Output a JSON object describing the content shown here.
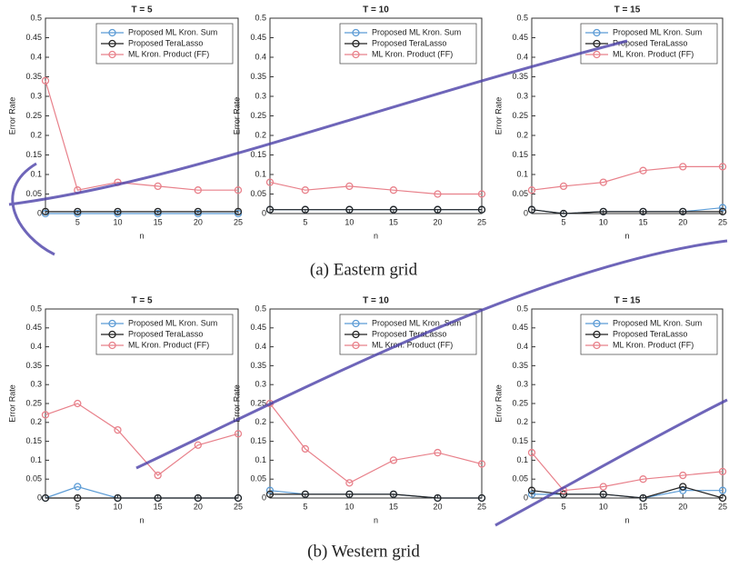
{
  "chart_data": [
    {
      "type": "line",
      "title": "T = 5",
      "xlabel": "n",
      "ylabel": "Error Rate",
      "x": [
        1,
        5,
        10,
        15,
        20,
        25
      ],
      "xlim": [
        1,
        25
      ],
      "xticks": [
        5,
        10,
        15,
        20,
        25
      ],
      "ylim": [
        0,
        0.5
      ],
      "yticks": [
        0,
        0.05,
        0.1,
        0.15,
        0.2,
        0.25,
        0.3,
        0.35,
        0.4,
        0.45,
        0.5
      ],
      "legend": "upper right",
      "series": [
        {
          "name": "Proposed ML Kron. Sum",
          "color": "#5b9bd5",
          "values": [
            0,
            0,
            0,
            0,
            0,
            0
          ]
        },
        {
          "name": "Proposed TeraLasso",
          "color": "#222222",
          "values": [
            0.005,
            0.005,
            0.005,
            0.005,
            0.005,
            0.005
          ]
        },
        {
          "name": "ML Kron. Product (FF)",
          "color": "#e8808a",
          "values": [
            0.34,
            0.06,
            0.08,
            0.07,
            0.06,
            0.06
          ]
        }
      ]
    },
    {
      "type": "line",
      "title": "T = 10",
      "xlabel": "n",
      "ylabel": "Error Rate",
      "x": [
        1,
        5,
        10,
        15,
        20,
        25
      ],
      "xlim": [
        1,
        25
      ],
      "xticks": [
        5,
        10,
        15,
        20,
        25
      ],
      "ylim": [
        0,
        0.5
      ],
      "yticks": [
        0,
        0.05,
        0.1,
        0.15,
        0.2,
        0.25,
        0.3,
        0.35,
        0.4,
        0.45,
        0.5
      ],
      "legend": "upper right",
      "series": [
        {
          "name": "Proposed ML Kron. Sum",
          "color": "#5b9bd5",
          "values": [
            0.01,
            0.01,
            0.01,
            0.01,
            0.01,
            0.01
          ]
        },
        {
          "name": "Proposed TeraLasso",
          "color": "#222222",
          "values": [
            0.01,
            0.01,
            0.01,
            0.01,
            0.01,
            0.01
          ]
        },
        {
          "name": "ML Kron. Product (FF)",
          "color": "#e8808a",
          "values": [
            0.08,
            0.06,
            0.07,
            0.06,
            0.05,
            0.05
          ]
        }
      ]
    },
    {
      "type": "line",
      "title": "T = 15",
      "xlabel": "n",
      "ylabel": "Error Rate",
      "x": [
        1,
        5,
        10,
        15,
        20,
        25
      ],
      "xlim": [
        1,
        25
      ],
      "xticks": [
        5,
        10,
        15,
        20,
        25
      ],
      "ylim": [
        0,
        0.5
      ],
      "yticks": [
        0,
        0.05,
        0.1,
        0.15,
        0.2,
        0.25,
        0.3,
        0.35,
        0.4,
        0.45,
        0.5
      ],
      "legend": "upper right",
      "series": [
        {
          "name": "Proposed ML Kron. Sum",
          "color": "#5b9bd5",
          "values": [
            0.01,
            0,
            0.005,
            0.005,
            0.005,
            0.015
          ]
        },
        {
          "name": "Proposed TeraLasso",
          "color": "#222222",
          "values": [
            0.01,
            0,
            0.005,
            0.005,
            0.005,
            0.005
          ]
        },
        {
          "name": "ML Kron. Product (FF)",
          "color": "#e8808a",
          "values": [
            0.06,
            0.07,
            0.08,
            0.11,
            0.12,
            0.12
          ]
        }
      ]
    },
    {
      "type": "line",
      "title": "T = 5",
      "xlabel": "n",
      "ylabel": "Error Rate",
      "x": [
        1,
        5,
        10,
        15,
        20,
        25
      ],
      "xlim": [
        1,
        25
      ],
      "xticks": [
        5,
        10,
        15,
        20,
        25
      ],
      "ylim": [
        0,
        0.5
      ],
      "yticks": [
        0,
        0.05,
        0.1,
        0.15,
        0.2,
        0.25,
        0.3,
        0.35,
        0.4,
        0.45,
        0.5
      ],
      "legend": "upper right",
      "series": [
        {
          "name": "Proposed ML Kron. Sum",
          "color": "#5b9bd5",
          "values": [
            0,
            0.03,
            0,
            0,
            0,
            0
          ]
        },
        {
          "name": "Proposed TeraLasso",
          "color": "#222222",
          "values": [
            0,
            0,
            0,
            0,
            0,
            0
          ]
        },
        {
          "name": "ML Kron. Product (FF)",
          "color": "#e8808a",
          "values": [
            0.22,
            0.25,
            0.18,
            0.06,
            0.14,
            0.17
          ]
        }
      ]
    },
    {
      "type": "line",
      "title": "T = 10",
      "xlabel": "n",
      "ylabel": "Error Rate",
      "x": [
        1,
        5,
        10,
        15,
        20,
        25
      ],
      "xlim": [
        1,
        25
      ],
      "xticks": [
        5,
        10,
        15,
        20,
        25
      ],
      "ylim": [
        0,
        0.5
      ],
      "yticks": [
        0,
        0.05,
        0.1,
        0.15,
        0.2,
        0.25,
        0.3,
        0.35,
        0.4,
        0.45,
        0.5
      ],
      "legend": "upper right",
      "series": [
        {
          "name": "Proposed ML Kron. Sum",
          "color": "#5b9bd5",
          "values": [
            0.02,
            0.01,
            0.01,
            0.01,
            0,
            0
          ]
        },
        {
          "name": "Proposed TeraLasso",
          "color": "#222222",
          "values": [
            0.01,
            0.01,
            0.01,
            0.01,
            0,
            0
          ]
        },
        {
          "name": "ML Kron. Product (FF)",
          "color": "#e8808a",
          "values": [
            0.25,
            0.13,
            0.04,
            0.1,
            0.12,
            0.09
          ]
        }
      ]
    },
    {
      "type": "line",
      "title": "T = 15",
      "xlabel": "n",
      "ylabel": "Error Rate",
      "x": [
        1,
        5,
        10,
        15,
        20,
        25
      ],
      "xlim": [
        1,
        25
      ],
      "xticks": [
        5,
        10,
        15,
        20,
        25
      ],
      "ylim": [
        0,
        0.5
      ],
      "yticks": [
        0,
        0.05,
        0.1,
        0.15,
        0.2,
        0.25,
        0.3,
        0.35,
        0.4,
        0.45,
        0.5
      ],
      "legend": "upper right",
      "series": [
        {
          "name": "Proposed ML Kron. Sum",
          "color": "#5b9bd5",
          "values": [
            0.01,
            0.01,
            0.01,
            0,
            0.02,
            0.02
          ]
        },
        {
          "name": "Proposed TeraLasso",
          "color": "#222222",
          "values": [
            0.02,
            0.01,
            0.01,
            0,
            0.03,
            0
          ]
        },
        {
          "name": "ML Kron. Product (FF)",
          "color": "#e8808a",
          "values": [
            0.12,
            0.02,
            0.03,
            0.05,
            0.06,
            0.07
          ]
        }
      ]
    }
  ],
  "captions": [
    "(a) Eastern grid",
    "(b) Western grid"
  ]
}
